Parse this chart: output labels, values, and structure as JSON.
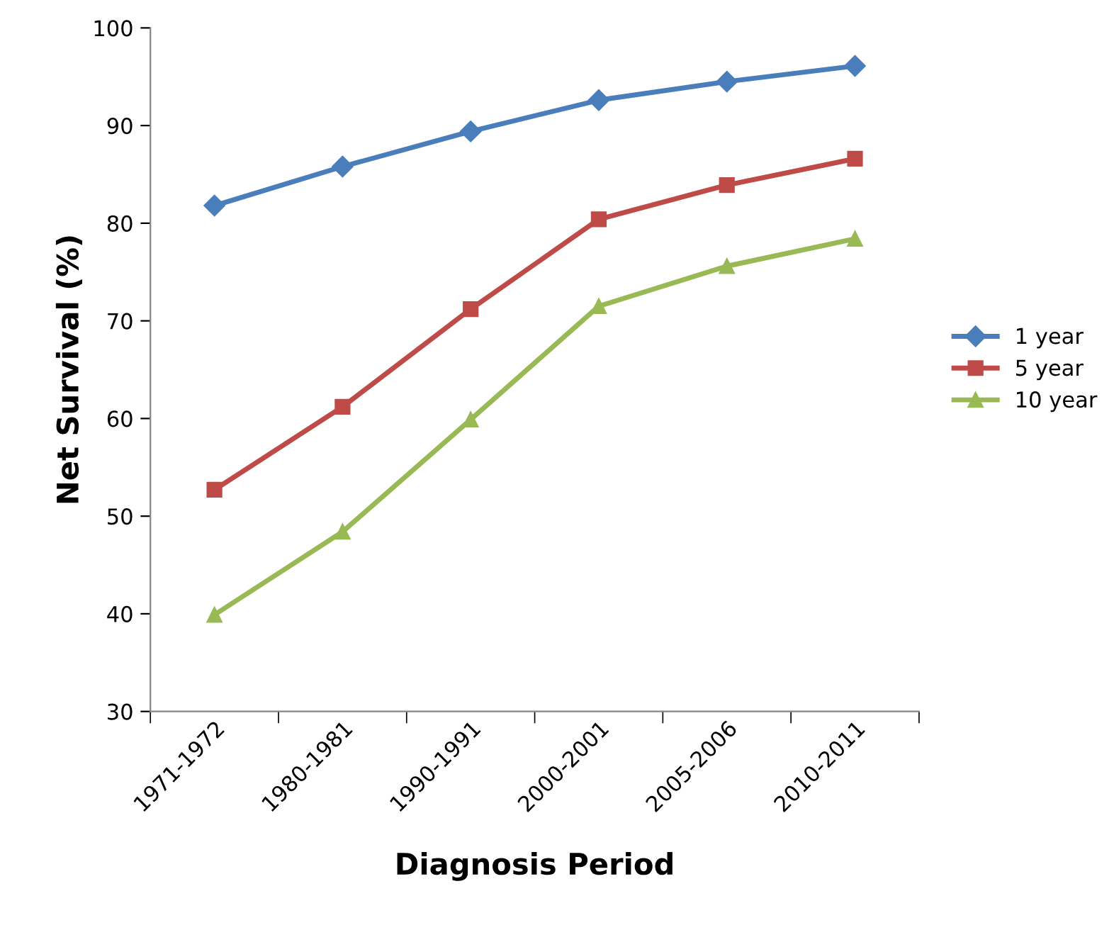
{
  "chart_data": {
    "type": "line",
    "xlabel": "Diagnosis Period",
    "ylabel": "Net Survival (%)",
    "categories": [
      "1971-1972",
      "1980-1981",
      "1990-1991",
      "2000-2001",
      "2005-2006",
      "2010-2011"
    ],
    "series": [
      {
        "name": "1 year",
        "color": "#4a7ebb",
        "marker": "diamond",
        "values": [
          81.8,
          85.8,
          89.4,
          92.6,
          94.5,
          96.1
        ]
      },
      {
        "name": "5 year",
        "color": "#be4b48",
        "marker": "square",
        "values": [
          52.7,
          61.2,
          71.2,
          80.4,
          83.9,
          86.6
        ]
      },
      {
        "name": "10 year",
        "color": "#98b954",
        "marker": "triangle",
        "values": [
          39.9,
          48.4,
          59.9,
          71.5,
          75.6,
          78.4
        ]
      }
    ],
    "ylim": [
      30,
      100
    ],
    "yticks": [
      30,
      40,
      50,
      60,
      70,
      80,
      90,
      100
    ],
    "grid": false,
    "legend": "right",
    "line_style": "solid"
  }
}
